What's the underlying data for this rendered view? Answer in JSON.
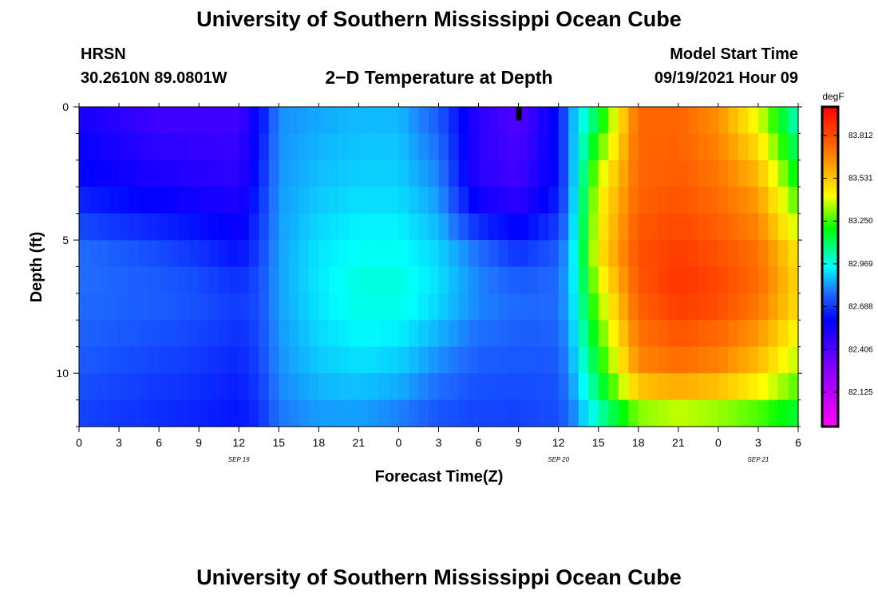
{
  "page": {
    "title_top": "University of Southern Mississippi Ocean Cube",
    "title_bottom": "University of Southern Mississippi Ocean Cube",
    "station": "HRSN",
    "coords": "30.2610N  89.0801W",
    "subtitle": "2−D Temperature at Depth",
    "model_start_label": "Model Start Time",
    "model_start_value": "09/19/2021 Hour 09"
  },
  "chart_data": {
    "type": "heatmap",
    "title": "2−D Temperature at Depth",
    "xlabel": "Forecast Time(Z)",
    "ylabel": "Depth (ft)",
    "x_ticks": [
      "0",
      "3",
      "6",
      "9",
      "12",
      "15",
      "18",
      "21",
      "0",
      "3",
      "6",
      "9",
      "12",
      "15",
      "18",
      "21",
      "0",
      "3",
      "6"
    ],
    "x_hours": [
      0,
      3,
      6,
      9,
      12,
      15,
      18,
      21,
      24,
      27,
      30,
      33,
      36,
      39,
      42,
      45,
      48,
      51,
      54
    ],
    "xlim": [
      0,
      54
    ],
    "date_labels": [
      {
        "label": "SEP 19",
        "hour": 12
      },
      {
        "label": "SEP 20",
        "hour": 36
      },
      {
        "label": "SEP 21",
        "hour": 51
      }
    ],
    "y_ticks": [
      "0",
      "5",
      "10"
    ],
    "y_values": [
      0,
      5,
      10
    ],
    "ylim": [
      0,
      12
    ],
    "colorbar": {
      "unit": "degF",
      "min": 81.9,
      "max": 84.0,
      "tick_labels": [
        "83.812",
        "83.531",
        "83.250",
        "82.969",
        "82.688",
        "82.406",
        "82.125"
      ],
      "tick_values": [
        83.812,
        83.531,
        83.25,
        82.969,
        82.688,
        82.406,
        82.125
      ]
    },
    "series": [
      {
        "depth_ft": 0.5,
        "hour": [
          0,
          3,
          6,
          9,
          12,
          13.5,
          15,
          18,
          21,
          24,
          27,
          30,
          33,
          36,
          37,
          39,
          42,
          45,
          48,
          51,
          54
        ],
        "temp_degF": [
          82.55,
          82.5,
          82.45,
          82.45,
          82.45,
          82.6,
          82.82,
          82.85,
          82.87,
          82.87,
          82.75,
          82.5,
          82.4,
          82.62,
          82.85,
          83.15,
          83.75,
          83.75,
          83.65,
          83.4,
          83.0
        ]
      },
      {
        "depth_ft": 3,
        "hour": [
          0,
          3,
          6,
          9,
          12,
          13.5,
          15,
          18,
          21,
          24,
          27,
          30,
          33,
          36,
          37,
          39,
          42,
          45,
          48,
          51,
          54
        ],
        "temp_degF": [
          82.62,
          82.58,
          82.55,
          82.52,
          82.5,
          82.65,
          82.83,
          82.88,
          82.9,
          82.9,
          82.82,
          82.5,
          82.45,
          82.62,
          82.85,
          83.4,
          83.75,
          83.78,
          83.72,
          83.6,
          83.2
        ]
      },
      {
        "depth_ft": 5.5,
        "hour": [
          0,
          3,
          6,
          9,
          12,
          13.5,
          15,
          18,
          21,
          24,
          27,
          30,
          33,
          36,
          37,
          39,
          42,
          45,
          48,
          51,
          54
        ],
        "temp_degF": [
          82.78,
          82.75,
          82.72,
          82.68,
          82.62,
          82.7,
          82.84,
          82.92,
          82.96,
          82.96,
          82.9,
          82.78,
          82.68,
          82.75,
          82.9,
          83.45,
          83.8,
          83.85,
          83.8,
          83.72,
          83.45
        ]
      },
      {
        "depth_ft": 7,
        "hour": [
          0,
          3,
          6,
          9,
          12,
          13.5,
          15,
          18,
          21,
          24,
          27,
          30,
          33,
          36,
          37,
          39,
          42,
          45,
          48,
          51,
          54
        ],
        "temp_degF": [
          82.78,
          82.77,
          82.76,
          82.74,
          82.7,
          82.73,
          82.84,
          82.93,
          82.99,
          82.99,
          82.92,
          82.82,
          82.78,
          82.78,
          82.9,
          83.35,
          83.78,
          83.88,
          83.84,
          83.74,
          83.5
        ]
      },
      {
        "depth_ft": 10,
        "hour": [
          0,
          3,
          6,
          9,
          12,
          13.5,
          15,
          18,
          21,
          24,
          27,
          30,
          33,
          36,
          37,
          39,
          42,
          45,
          48,
          51,
          54
        ],
        "temp_degF": [
          82.74,
          82.72,
          82.7,
          82.68,
          82.65,
          82.7,
          82.82,
          82.88,
          82.9,
          82.88,
          82.8,
          82.74,
          82.73,
          82.74,
          82.85,
          83.15,
          83.65,
          83.7,
          83.65,
          83.52,
          83.32
        ]
      },
      {
        "depth_ft": 12,
        "hour": [
          0,
          3,
          6,
          9,
          12,
          13.5,
          15,
          18,
          21,
          24,
          27,
          30,
          33,
          36,
          37,
          39,
          42,
          45,
          48,
          51,
          54
        ],
        "temp_degF": [
          82.7,
          82.68,
          82.66,
          82.64,
          82.62,
          82.66,
          82.78,
          82.82,
          82.82,
          82.78,
          82.72,
          82.7,
          82.7,
          82.72,
          82.78,
          82.98,
          83.2,
          83.25,
          83.22,
          83.18,
          83.1
        ]
      }
    ],
    "marker": {
      "hour": 33,
      "depth_ft": 0.25
    }
  }
}
